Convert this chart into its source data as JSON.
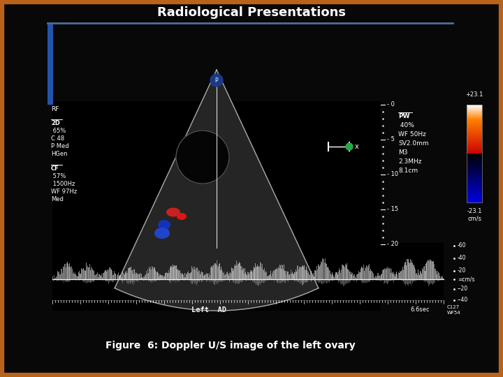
{
  "title": "Radiological Presentations",
  "caption": "Figure  6: Doppler U/S image of the left ovary",
  "bg_color": "#080808",
  "border_color": "#b8621a",
  "title_color": "#ffffff",
  "caption_color": "#ffffff",
  "title_fontsize": 13,
  "caption_fontsize": 10,
  "left_label1": "RF",
  "left_label2_lines": [
    "2D",
    " 65%",
    "C 48",
    "P Med",
    "HGen"
  ],
  "left_label3_lines": [
    "CF",
    " 57%",
    " 1500Hz",
    "WF 97Hz",
    "Med"
  ],
  "right_pw_lines": [
    "PW",
    " 40%",
    "WF 50Hz",
    "SV2.0mm",
    "M3",
    "2.3MHz",
    "8.1cm"
  ],
  "right_scale_top": "+23.1",
  "right_scale_bottom": "-23.1",
  "right_scale_unit": "cm/s",
  "depth_marks": [
    "- 0",
    "- 5",
    "- 10",
    "- 15",
    "- 20"
  ],
  "doppler_scale": [
    "-60",
    "-40",
    "-20",
    "=cm/s",
    "--20",
    "--40"
  ],
  "bottom_left": "Left  AD",
  "bottom_mid": "6.6sec",
  "bottom_right1": "C127",
  "bottom_right2": "WF54",
  "blue_line_color": "#4a6fa0",
  "fan_outline_color": "#cccccc",
  "fan_fill_color": "#1e1e1e",
  "follicle_color": "#080808",
  "red_spot1": "#cc2020",
  "red_spot2": "#dd1515",
  "blue_spot1": "#1133bb",
  "blue_spot2": "#2244cc",
  "green_dot_color": "#22aa44"
}
